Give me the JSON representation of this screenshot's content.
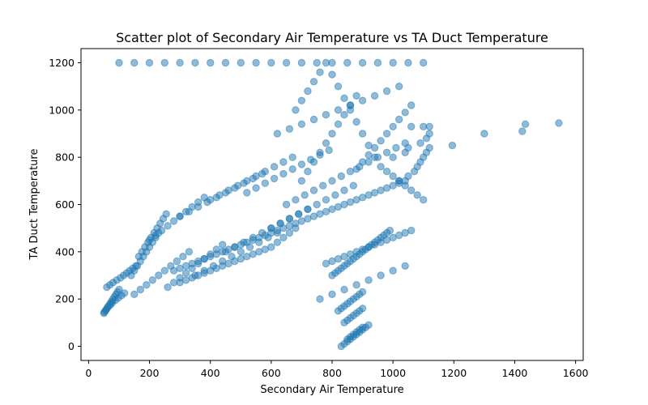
{
  "chart_data": {
    "type": "scatter",
    "title": "Scatter plot of Secondary Air Temperature vs TA Duct Temperature",
    "xlabel": "Secondary Air Temperature",
    "ylabel": "TA Duct Temperature",
    "xlim": [
      -25,
      1625
    ],
    "ylim": [
      -60,
      1260
    ],
    "xticks": [
      0,
      200,
      400,
      600,
      800,
      1000,
      1200,
      1400,
      1600
    ],
    "yticks": [
      0,
      200,
      400,
      600,
      800,
      1000,
      1200
    ],
    "grid": false,
    "legend": "none",
    "marker_color": "#1f77b4",
    "marker_alpha": 0.5,
    "series": [
      {
        "x": [
          50,
          55,
          60,
          65,
          70,
          75,
          80,
          85,
          90,
          95,
          100,
          52,
          58,
          63,
          72,
          78,
          88,
          98,
          108,
          118,
          60,
          70,
          80,
          92,
          105,
          115,
          125,
          135,
          145,
          155,
          140,
          150,
          160,
          170,
          180,
          190,
          200,
          210,
          220,
          230,
          165,
          175,
          185,
          195,
          205,
          215,
          225,
          235,
          245,
          255,
          150,
          170,
          190,
          210,
          230,
          250,
          270,
          290,
          310,
          330,
          200,
          220,
          240,
          260,
          280,
          300,
          320,
          340,
          360,
          380,
          260,
          280,
          300,
          320,
          340,
          360,
          380,
          400,
          420,
          440,
          300,
          330,
          360,
          390,
          420,
          450,
          480,
          510,
          540,
          570,
          350,
          380,
          410,
          440,
          470,
          500,
          530,
          560,
          590,
          620,
          400,
          430,
          460,
          490,
          520,
          550,
          580,
          610,
          640,
          670,
          450,
          480,
          510,
          540,
          570,
          600,
          630,
          660,
          690,
          720,
          520,
          550,
          580,
          610,
          640,
          670,
          700,
          730,
          760,
          790,
          600,
          630,
          660,
          690,
          720,
          750,
          780,
          810,
          840,
          870,
          700,
          720,
          740,
          760,
          780,
          800,
          820,
          840,
          860,
          880,
          880,
          900,
          920,
          940,
          960,
          980,
          1000,
          1020,
          1040,
          1060,
          650,
          680,
          710,
          740,
          770,
          800,
          830,
          860,
          890,
          920,
          950,
          980,
          1010,
          1040,
          680,
          700,
          720,
          740,
          760,
          780,
          800,
          820,
          840,
          860,
          880,
          900,
          920,
          940,
          960,
          980,
          1000,
          1020,
          1040,
          1060,
          1080,
          1100,
          100,
          150,
          200,
          250,
          300,
          350,
          400,
          450,
          500,
          550,
          600,
          650,
          700,
          750,
          800,
          850,
          900,
          950,
          1000,
          1050,
          1100,
          300,
          320,
          340,
          360,
          380,
          400,
          420,
          440,
          460,
          480,
          500,
          520,
          540,
          560,
          580,
          600,
          620,
          640,
          660,
          680,
          280,
          300,
          320,
          340,
          360,
          380,
          400,
          420,
          440,
          460,
          480,
          500,
          520,
          540,
          560,
          580,
          600,
          620,
          640,
          660,
          680,
          700,
          720,
          740,
          760,
          780,
          800,
          820,
          840,
          860,
          880,
          900,
          920,
          940,
          960,
          980,
          1000,
          1020,
          1040,
          780,
          800,
          820,
          840,
          860,
          880,
          900,
          920,
          940,
          960,
          980,
          1000,
          1020,
          1040,
          1060,
          800,
          810,
          820,
          830,
          840,
          850,
          860,
          870,
          880,
          890,
          900,
          910,
          920,
          930,
          940,
          950,
          960,
          970,
          980,
          990,
          760,
          800,
          840,
          880,
          920,
          960,
          1000,
          1040,
          820,
          830,
          840,
          850,
          860,
          870,
          880,
          890,
          900,
          850,
          860,
          870,
          880,
          890,
          900,
          830,
          840,
          850,
          860,
          870,
          880,
          890,
          900,
          910,
          920,
          840,
          850,
          860,
          870,
          880,
          890,
          900,
          1060,
          1100,
          1120,
          1195,
          1300,
          1425,
          1435,
          1545,
          1000,
          1040,
          1050,
          1090,
          1110,
          1120,
          1020,
          1050,
          1070,
          1080,
          1090,
          1100,
          1110,
          1120,
          620,
          660,
          700,
          740,
          780,
          820,
          860,
          900,
          940,
          980,
          1020
        ],
        "y": [
          140,
          150,
          160,
          170,
          180,
          190,
          200,
          210,
          220,
          230,
          240,
          145,
          155,
          165,
          175,
          185,
          195,
          205,
          215,
          225,
          250,
          260,
          270,
          280,
          290,
          300,
          310,
          320,
          330,
          340,
          300,
          320,
          340,
          360,
          380,
          400,
          420,
          440,
          460,
          480,
          380,
          400,
          420,
          440,
          460,
          480,
          500,
          520,
          540,
          560,
          220,
          240,
          260,
          280,
          300,
          320,
          340,
          360,
          380,
          400,
          450,
          470,
          490,
          510,
          530,
          550,
          570,
          590,
          610,
          630,
          250,
          270,
          290,
          310,
          330,
          350,
          370,
          390,
          410,
          430,
          550,
          570,
          590,
          610,
          630,
          650,
          670,
          690,
          710,
          730,
          300,
          320,
          340,
          360,
          380,
          400,
          420,
          440,
          460,
          480,
          620,
          640,
          660,
          680,
          700,
          720,
          740,
          760,
          780,
          800,
          400,
          420,
          440,
          460,
          480,
          500,
          520,
          540,
          560,
          580,
          650,
          670,
          690,
          710,
          730,
          750,
          770,
          790,
          810,
          830,
          500,
          520,
          540,
          560,
          580,
          600,
          620,
          640,
          660,
          680,
          700,
          740,
          780,
          820,
          860,
          900,
          940,
          980,
          1020,
          1060,
          750,
          780,
          810,
          840,
          870,
          900,
          930,
          960,
          990,
          1020,
          600,
          620,
          640,
          660,
          680,
          700,
          720,
          740,
          760,
          780,
          800,
          820,
          840,
          860,
          1000,
          1040,
          1080,
          1120,
          1160,
          1200,
          1150,
          1100,
          1050,
          1000,
          950,
          900,
          850,
          800,
          760,
          740,
          720,
          700,
          680,
          660,
          640,
          620,
          1200,
          1200,
          1200,
          1200,
          1200,
          1200,
          1200,
          1200,
          1200,
          1200,
          1200,
          1200,
          1200,
          1200,
          1200,
          1200,
          1200,
          1200,
          1200,
          1200,
          1200,
          270,
          280,
          290,
          300,
          310,
          320,
          330,
          340,
          350,
          360,
          370,
          380,
          390,
          400,
          410,
          420,
          440,
          460,
          480,
          500,
          320,
          330,
          340,
          350,
          360,
          370,
          380,
          390,
          400,
          410,
          420,
          430,
          440,
          450,
          460,
          470,
          480,
          490,
          500,
          510,
          520,
          530,
          540,
          550,
          560,
          570,
          580,
          590,
          600,
          610,
          620,
          630,
          640,
          650,
          660,
          670,
          680,
          690,
          700,
          350,
          360,
          370,
          380,
          390,
          400,
          410,
          420,
          430,
          440,
          450,
          460,
          470,
          480,
          490,
          300,
          310,
          320,
          330,
          340,
          350,
          360,
          370,
          380,
          390,
          400,
          410,
          420,
          430,
          440,
          450,
          460,
          470,
          480,
          490,
          200,
          220,
          240,
          260,
          280,
          300,
          320,
          340,
          150,
          160,
          170,
          180,
          190,
          200,
          210,
          220,
          230,
          30,
          40,
          50,
          60,
          70,
          80,
          0,
          10,
          20,
          30,
          40,
          50,
          60,
          70,
          80,
          90,
          100,
          110,
          120,
          130,
          140,
          150,
          160,
          930,
          930,
          930,
          850,
          900,
          910,
          940,
          945,
          800,
          820,
          840,
          860,
          880,
          900,
          700,
          720,
          740,
          760,
          780,
          800,
          820,
          840,
          900,
          920,
          940,
          960,
          980,
          1000,
          1020,
          1040,
          1060,
          1080,
          1100
        ]
      }
    ]
  }
}
